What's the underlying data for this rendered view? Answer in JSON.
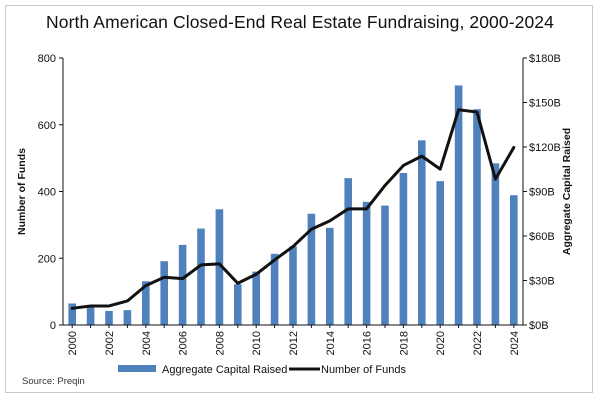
{
  "chart_data": {
    "type": "bar+line",
    "title": "North American Closed-End Real Estate Fundraising, 2000-2024",
    "source": "Source: Preqin",
    "x": [
      2000,
      2001,
      2002,
      2003,
      2004,
      2005,
      2006,
      2007,
      2008,
      2009,
      2010,
      2011,
      2012,
      2013,
      2014,
      2015,
      2016,
      2017,
      2018,
      2019,
      2020,
      2021,
      2022,
      2023,
      2024
    ],
    "x_tick_labels": [
      "2000",
      "2002",
      "2004",
      "2006",
      "2008",
      "2010",
      "2012",
      "2014",
      "2016",
      "2018",
      "2020",
      "2022",
      "2024"
    ],
    "left_axis": {
      "label": "Number of Funds",
      "range": [
        0,
        800
      ],
      "ticks": [
        0,
        200,
        400,
        600,
        800
      ],
      "tick_labels": [
        "0",
        "200",
        "400",
        "600",
        "800"
      ]
    },
    "right_axis": {
      "label": "Aggregate Capital Raised",
      "range": [
        0,
        180
      ],
      "ticks": [
        0,
        30,
        60,
        90,
        120,
        150,
        180
      ],
      "tick_labels": [
        "$0B",
        "$30B",
        "$60B",
        "$90B",
        "$120B",
        "$150B",
        "$180B"
      ]
    },
    "series": [
      {
        "name": "Aggregate Capital Raised",
        "type": "bar",
        "axis": "right",
        "color": "#4f81bd",
        "values": [
          14.5,
          13,
          9.5,
          10,
          29.5,
          43,
          54,
          65,
          78,
          27.5,
          36,
          48,
          53,
          75,
          65.5,
          99,
          83,
          80.5,
          102.5,
          124.5,
          97,
          161.5,
          145.5,
          109,
          87.5
        ]
      },
      {
        "name": "Number of Funds",
        "type": "line",
        "axis": "left",
        "color": "#111111",
        "values": [
          50,
          57,
          57,
          72,
          118,
          143,
          139,
          180,
          183,
          125,
          152,
          195,
          235,
          287,
          312,
          348,
          348,
          418,
          478,
          506,
          467,
          645,
          638,
          437,
          532
        ]
      }
    ],
    "legend": {
      "position": "bottom",
      "items": [
        "Aggregate Capital Raised",
        "Number of Funds"
      ]
    }
  }
}
